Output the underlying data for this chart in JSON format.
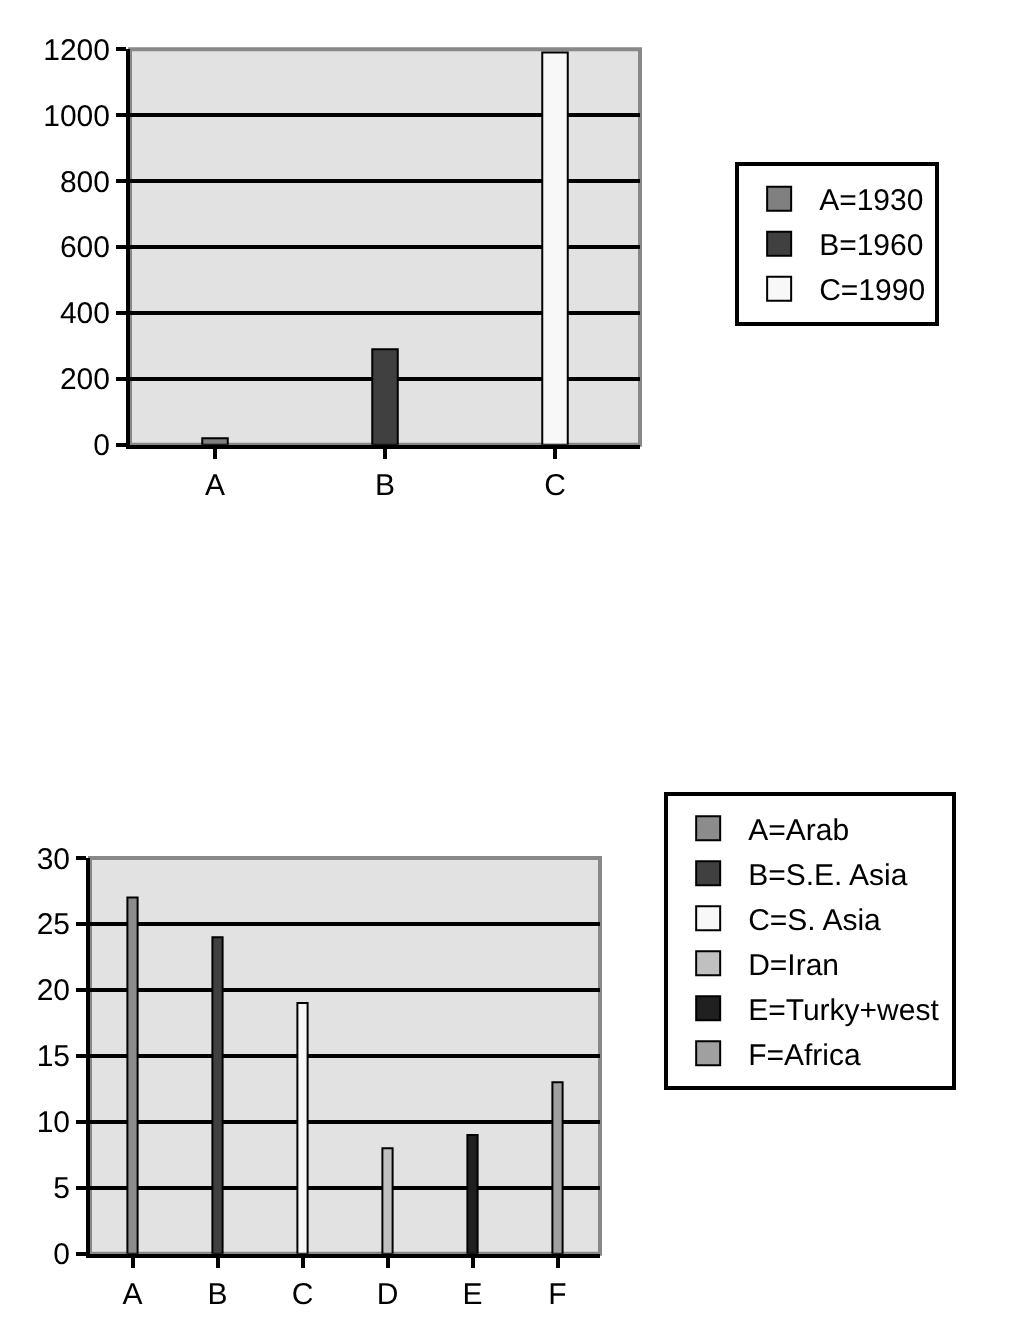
{
  "chart_data": [
    {
      "type": "bar",
      "categories": [
        "A",
        "B",
        "C"
      ],
      "series": [
        {
          "name": "A=1930",
          "color": "#808080",
          "values": [
            20,
            null,
            null
          ]
        },
        {
          "name": "B=1960",
          "color": "#404040",
          "values": [
            null,
            290,
            null
          ]
        },
        {
          "name": "C=1990",
          "color": "#f8f8f8",
          "values": [
            null,
            null,
            1190
          ]
        }
      ],
      "ylim": [
        0,
        1200
      ],
      "yticks": [
        0,
        200,
        400,
        600,
        800,
        1000,
        1200
      ],
      "grid": "y",
      "legend": "right"
    },
    {
      "type": "bar",
      "categories": [
        "A",
        "B",
        "C",
        "D",
        "E",
        "F"
      ],
      "series": [
        {
          "name": "A=Arab",
          "color": "#8c8c8c",
          "values": [
            27,
            null,
            null,
            null,
            null,
            null
          ]
        },
        {
          "name": "B=S.E. Asia",
          "color": "#404040",
          "values": [
            null,
            24,
            null,
            null,
            null,
            null
          ]
        },
        {
          "name": "C=S. Asia",
          "color": "#f8f8f8",
          "values": [
            null,
            null,
            19,
            null,
            null,
            null
          ]
        },
        {
          "name": "D=Iran",
          "color": "#c0c0c0",
          "values": [
            null,
            null,
            null,
            8,
            null,
            null
          ]
        },
        {
          "name": "E=Turky+west",
          "color": "#202020",
          "values": [
            null,
            null,
            null,
            null,
            9,
            null
          ]
        },
        {
          "name": "F=Africa",
          "color": "#a0a0a0",
          "values": [
            null,
            null,
            null,
            null,
            null,
            13
          ]
        }
      ],
      "ylim": [
        0,
        30
      ],
      "yticks": [
        0,
        5,
        10,
        15,
        20,
        25,
        30
      ],
      "grid": "y",
      "legend": "right"
    }
  ]
}
